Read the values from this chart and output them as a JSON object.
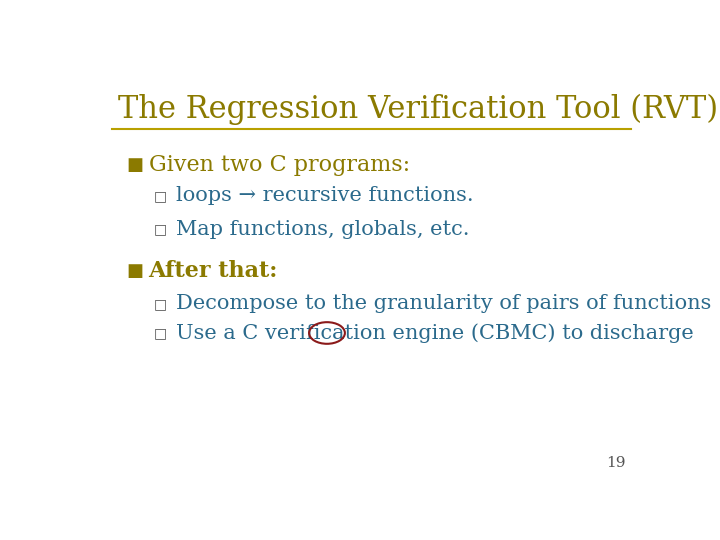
{
  "title": "The Regression Verification Tool (RVT)",
  "title_color": "#8B7A00",
  "title_fontsize": 22,
  "bg_color": "#FFFFFF",
  "line_color": "#B8A000",
  "bullet_color": "#8B7A00",
  "text_color_teal": "#2B6A8C",
  "bullet1_text": "Given two C programs:",
  "sub1a_text": "loops → recursive functions.",
  "sub1b_text": "Map functions, globals, etc.",
  "bullet2_text": "After that:",
  "sub2a_text": "Decompose to the granularity of pairs of functions",
  "sub2b_text": "Use a C verification engine (CBMC) to discharge",
  "page_num": "19",
  "font_family": "serif"
}
